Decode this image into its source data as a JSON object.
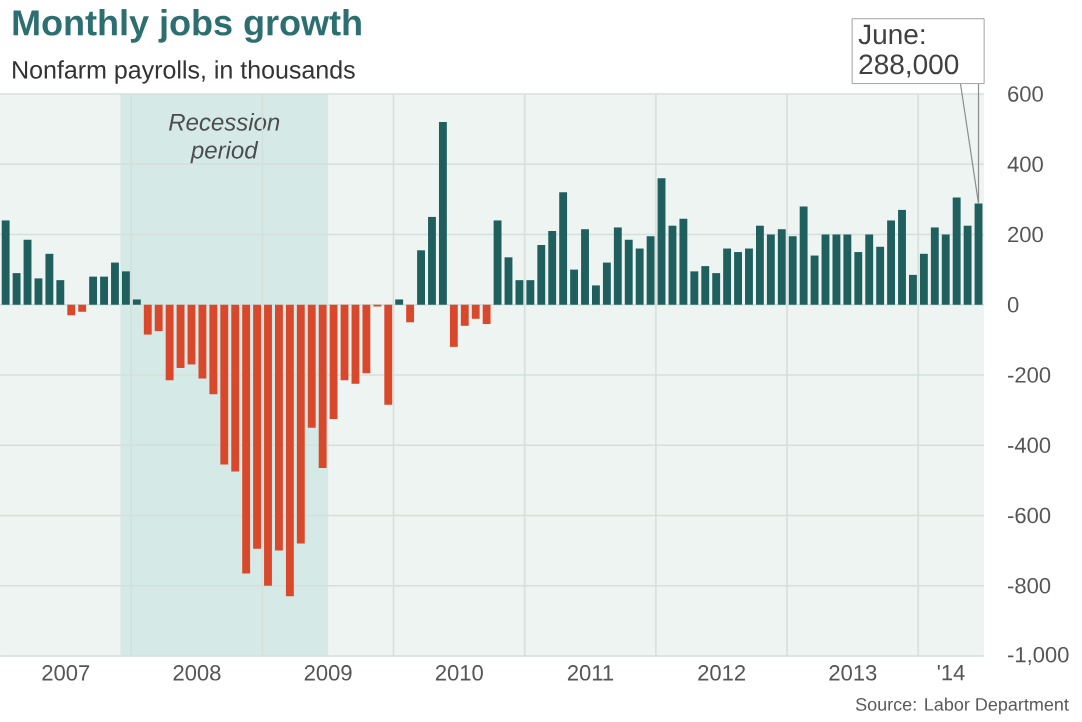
{
  "chart_data": {
    "type": "bar",
    "title": "Monthly jobs growth",
    "subtitle": "Nonfarm payrolls, in thousands",
    "x": [
      "2007-01",
      "2007-02",
      "2007-03",
      "2007-04",
      "2007-05",
      "2007-06",
      "2007-07",
      "2007-08",
      "2007-09",
      "2007-10",
      "2007-11",
      "2007-12",
      "2008-01",
      "2008-02",
      "2008-03",
      "2008-04",
      "2008-05",
      "2008-06",
      "2008-07",
      "2008-08",
      "2008-09",
      "2008-10",
      "2008-11",
      "2008-12",
      "2009-01",
      "2009-02",
      "2009-03",
      "2009-04",
      "2009-05",
      "2009-06",
      "2009-07",
      "2009-08",
      "2009-09",
      "2009-10",
      "2009-11",
      "2009-12",
      "2010-01",
      "2010-02",
      "2010-03",
      "2010-04",
      "2010-05",
      "2010-06",
      "2010-07",
      "2010-08",
      "2010-09",
      "2010-10",
      "2010-11",
      "2010-12",
      "2011-01",
      "2011-02",
      "2011-03",
      "2011-04",
      "2011-05",
      "2011-06",
      "2011-07",
      "2011-08",
      "2011-09",
      "2011-10",
      "2011-11",
      "2011-12",
      "2012-01",
      "2012-02",
      "2012-03",
      "2012-04",
      "2012-05",
      "2012-06",
      "2012-07",
      "2012-08",
      "2012-09",
      "2012-10",
      "2012-11",
      "2012-12",
      "2013-01",
      "2013-02",
      "2013-03",
      "2013-04",
      "2013-05",
      "2013-06",
      "2013-07",
      "2013-08",
      "2013-09",
      "2013-10",
      "2013-11",
      "2013-12",
      "2014-01",
      "2014-02",
      "2014-03",
      "2014-04",
      "2014-05",
      "2014-06"
    ],
    "values": [
      240,
      90,
      185,
      75,
      145,
      70,
      -30,
      -20,
      80,
      80,
      120,
      95,
      15,
      -85,
      -75,
      -215,
      -180,
      -170,
      -210,
      -255,
      -455,
      -475,
      -765,
      -695,
      -800,
      -700,
      -830,
      -680,
      -350,
      -465,
      -325,
      -215,
      -225,
      -195,
      -5,
      -285,
      15,
      -50,
      155,
      250,
      520,
      -120,
      -60,
      -40,
      -55,
      240,
      135,
      70,
      70,
      170,
      210,
      320,
      100,
      215,
      55,
      120,
      220,
      185,
      160,
      195,
      360,
      225,
      245,
      95,
      110,
      90,
      160,
      150,
      160,
      225,
      200,
      215,
      195,
      280,
      140,
      200,
      200,
      200,
      150,
      200,
      165,
      240,
      270,
      85,
      145,
      220,
      200,
      305,
      225,
      288
    ],
    "colors": [
      "#1f5f5e",
      "#1f5f5e",
      "#1f5f5e",
      "#1f5f5e",
      "#1f5f5e",
      "#1f5f5e",
      "#d9482b",
      "#d9482b",
      "#1f5f5e",
      "#1f5f5e",
      "#1f5f5e",
      "#1f5f5e",
      "#1f5f5e",
      "#d9482b",
      "#d9482b",
      "#d9482b",
      "#d9482b",
      "#d9482b",
      "#d9482b",
      "#d9482b",
      "#d9482b",
      "#d9482b",
      "#d9482b",
      "#d9482b",
      "#d9482b",
      "#d9482b",
      "#d9482b",
      "#d9482b",
      "#d9482b",
      "#d9482b",
      "#d9482b",
      "#d9482b",
      "#d9482b",
      "#d9482b",
      "#d9482b",
      "#d9482b",
      "#1f5f5e",
      "#d9482b",
      "#1f5f5e",
      "#1f5f5e",
      "#1f5f5e",
      "#d9482b",
      "#d9482b",
      "#d9482b",
      "#d9482b",
      "#1f5f5e",
      "#1f5f5e",
      "#1f5f5e",
      "#1f5f5e",
      "#1f5f5e",
      "#1f5f5e",
      "#1f5f5e",
      "#1f5f5e",
      "#1f5f5e",
      "#1f5f5e",
      "#1f5f5e",
      "#1f5f5e",
      "#1f5f5e",
      "#1f5f5e",
      "#1f5f5e",
      "#1f5f5e",
      "#1f5f5e",
      "#1f5f5e",
      "#1f5f5e",
      "#1f5f5e",
      "#1f5f5e",
      "#1f5f5e",
      "#1f5f5e",
      "#1f5f5e",
      "#1f5f5e",
      "#1f5f5e",
      "#1f5f5e",
      "#1f5f5e",
      "#1f5f5e",
      "#1f5f5e",
      "#1f5f5e",
      "#1f5f5e",
      "#1f5f5e",
      "#1f5f5e",
      "#1f5f5e",
      "#1f5f5e",
      "#1f5f5e",
      "#1f5f5e",
      "#1f5f5e",
      "#1f5f5e",
      "#1f5f5e",
      "#1f5f5e",
      "#1f5f5e",
      "#1f5f5e",
      "#1f5f5e"
    ],
    "xlim": [
      "2006-12-16",
      "2014-06-16"
    ],
    "xticks": [
      {
        "value": "2007-06-16",
        "label": "2007"
      },
      {
        "value": "2007-12-16",
        "label": null
      },
      {
        "value": "2008-06-16",
        "label": "2008"
      },
      {
        "value": "2008-12-16",
        "label": null
      },
      {
        "value": "2009-06-16",
        "label": "2009"
      },
      {
        "value": "2009-12-16",
        "label": null
      },
      {
        "value": "2010-06-16",
        "label": "2010"
      },
      {
        "value": "2010-12-16",
        "label": null
      },
      {
        "value": "2011-06-16",
        "label": "2011"
      },
      {
        "value": "2011-12-16",
        "label": null
      },
      {
        "value": "2012-06-16",
        "label": "2012"
      },
      {
        "value": "2012-12-16",
        "label": null
      },
      {
        "value": "2013-06-16",
        "label": "2013"
      },
      {
        "value": "2013-12-16",
        "label": null
      },
      {
        "value": "2014-03-16",
        "label": "'14"
      }
    ],
    "ylim": [
      -1000,
      600
    ],
    "yticks": [
      600,
      400,
      200,
      0,
      -200,
      -400,
      -600,
      -800,
      {
        "value": -1000,
        "label": "-1,000"
      }
    ],
    "grid": true,
    "bands": [
      {
        "axis": "x",
        "from": "2007-11-16",
        "to": "2009-06-16",
        "label": "Recession period",
        "color": "#d5e9e7"
      }
    ],
    "annotations": [
      "June: 288,000",
      "Source: Labor Department"
    ]
  }
}
